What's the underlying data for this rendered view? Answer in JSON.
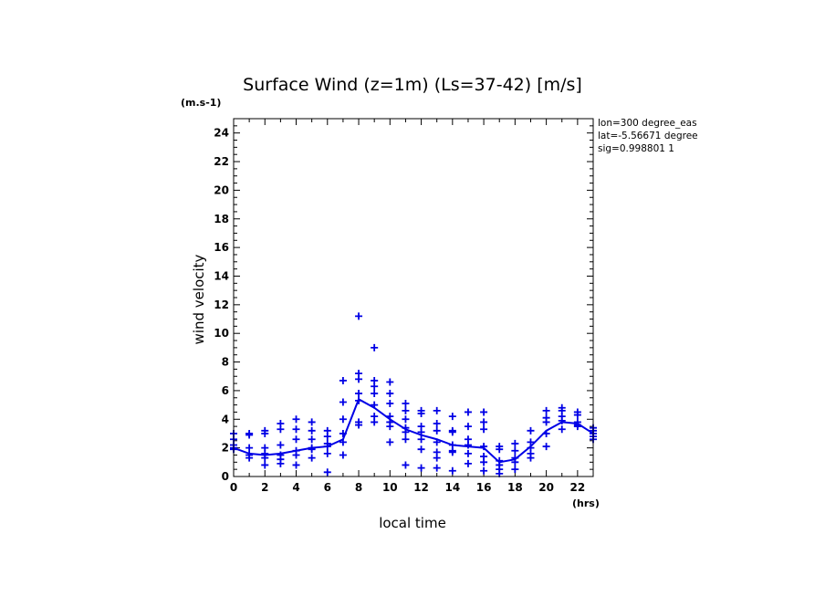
{
  "chart_data": {
    "type": "scatter",
    "title": "Surface Wind (z=1m) (Ls=37-42) [m/s]",
    "y_units": "(m.s-1)",
    "x_units": "(hrs)",
    "xlabel": "local time",
    "ylabel": "wind velocity",
    "xlim": [
      0,
      23
    ],
    "ylim": [
      0,
      25
    ],
    "x_ticks": [
      0,
      2,
      4,
      6,
      8,
      10,
      12,
      14,
      16,
      18,
      20,
      22
    ],
    "y_ticks": [
      0,
      2,
      4,
      6,
      8,
      10,
      12,
      14,
      16,
      18,
      20,
      22,
      24
    ],
    "info_lines": [
      "lon=300 degree_eas",
      "lat=-5.56671 degree",
      "sig=0.998801 1"
    ],
    "grid": false,
    "color": "#0000e6",
    "series": [
      {
        "type": "line",
        "x": [
          0,
          1,
          2,
          3,
          4,
          5,
          6,
          7,
          8,
          9,
          10,
          11,
          12,
          13,
          14,
          15,
          16,
          17,
          18,
          19,
          20,
          21,
          22,
          23
        ],
        "y": [
          2.0,
          1.6,
          1.5,
          1.6,
          1.8,
          2.0,
          2.1,
          2.6,
          5.4,
          4.8,
          4.0,
          3.3,
          2.9,
          2.6,
          2.2,
          2.1,
          2.0,
          1.0,
          1.2,
          2.1,
          3.2,
          3.8,
          3.7,
          3.0
        ]
      },
      {
        "type": "scatter",
        "marker": "+",
        "points": [
          [
            0,
            3.0
          ],
          [
            0,
            2.6
          ],
          [
            0,
            2.2
          ],
          [
            0,
            2.0
          ],
          [
            0,
            1.9
          ],
          [
            1,
            3.0
          ],
          [
            1,
            2.9
          ],
          [
            1,
            2.0
          ],
          [
            1,
            1.5
          ],
          [
            1,
            1.3
          ],
          [
            2,
            3.2
          ],
          [
            2,
            3.0
          ],
          [
            2,
            2.0
          ],
          [
            2,
            1.6
          ],
          [
            2,
            1.3
          ],
          [
            2,
            0.8
          ],
          [
            3,
            3.7
          ],
          [
            3,
            3.3
          ],
          [
            3,
            2.2
          ],
          [
            3,
            1.5
          ],
          [
            3,
            1.2
          ],
          [
            3,
            0.9
          ],
          [
            4,
            4.0
          ],
          [
            4,
            3.3
          ],
          [
            4,
            2.6
          ],
          [
            4,
            1.8
          ],
          [
            4,
            1.5
          ],
          [
            4,
            0.8
          ],
          [
            5,
            3.8
          ],
          [
            5,
            3.2
          ],
          [
            5,
            2.6
          ],
          [
            5,
            2.0
          ],
          [
            5,
            1.9
          ],
          [
            5,
            1.3
          ],
          [
            6,
            3.2
          ],
          [
            6,
            2.8
          ],
          [
            6,
            2.3
          ],
          [
            6,
            2.1
          ],
          [
            6,
            1.6
          ],
          [
            6,
            0.3
          ],
          [
            7,
            6.7
          ],
          [
            7,
            5.2
          ],
          [
            7,
            4.0
          ],
          [
            7,
            3.0
          ],
          [
            7,
            2.4
          ],
          [
            7,
            1.5
          ],
          [
            8,
            11.2
          ],
          [
            8,
            7.2
          ],
          [
            8,
            6.8
          ],
          [
            8,
            5.8
          ],
          [
            8,
            5.3
          ],
          [
            8,
            3.8
          ],
          [
            8,
            3.6
          ],
          [
            9,
            9.0
          ],
          [
            9,
            6.7
          ],
          [
            9,
            6.3
          ],
          [
            9,
            5.8
          ],
          [
            9,
            5.0
          ],
          [
            9,
            4.2
          ],
          [
            9,
            3.8
          ],
          [
            10,
            6.6
          ],
          [
            10,
            5.8
          ],
          [
            10,
            5.1
          ],
          [
            10,
            4.2
          ],
          [
            10,
            3.8
          ],
          [
            10,
            3.5
          ],
          [
            10,
            2.4
          ],
          [
            11,
            5.1
          ],
          [
            11,
            4.6
          ],
          [
            11,
            4.0
          ],
          [
            11,
            3.4
          ],
          [
            11,
            3.1
          ],
          [
            11,
            2.6
          ],
          [
            11,
            0.8
          ],
          [
            12,
            4.6
          ],
          [
            12,
            4.4
          ],
          [
            12,
            3.5
          ],
          [
            12,
            3.1
          ],
          [
            12,
            2.6
          ],
          [
            12,
            1.9
          ],
          [
            12,
            0.6
          ],
          [
            13,
            4.6
          ],
          [
            13,
            3.7
          ],
          [
            13,
            3.2
          ],
          [
            13,
            2.4
          ],
          [
            13,
            1.7
          ],
          [
            13,
            1.3
          ],
          [
            13,
            0.6
          ],
          [
            14,
            4.2
          ],
          [
            14,
            3.2
          ],
          [
            14,
            3.1
          ],
          [
            14,
            2.2
          ],
          [
            14,
            1.8
          ],
          [
            14,
            1.7
          ],
          [
            14,
            0.4
          ],
          [
            15,
            4.5
          ],
          [
            15,
            3.5
          ],
          [
            15,
            2.6
          ],
          [
            15,
            2.2
          ],
          [
            15,
            1.6
          ],
          [
            15,
            0.9
          ],
          [
            16,
            4.5
          ],
          [
            16,
            3.8
          ],
          [
            16,
            3.3
          ],
          [
            16,
            2.1
          ],
          [
            16,
            1.4
          ],
          [
            16,
            1.0
          ],
          [
            16,
            0.4
          ],
          [
            17,
            2.1
          ],
          [
            17,
            1.9
          ],
          [
            17,
            1.1
          ],
          [
            17,
            0.8
          ],
          [
            17,
            0.5
          ],
          [
            17,
            0.2
          ],
          [
            18,
            2.3
          ],
          [
            18,
            1.8
          ],
          [
            18,
            1.3
          ],
          [
            18,
            1.0
          ],
          [
            18,
            0.5
          ],
          [
            19,
            3.2
          ],
          [
            19,
            2.4
          ],
          [
            19,
            2.0
          ],
          [
            19,
            1.6
          ],
          [
            19,
            1.3
          ],
          [
            20,
            4.6
          ],
          [
            20,
            4.1
          ],
          [
            20,
            3.8
          ],
          [
            20,
            3.0
          ],
          [
            20,
            2.1
          ],
          [
            21,
            4.8
          ],
          [
            21,
            4.6
          ],
          [
            21,
            4.2
          ],
          [
            21,
            3.9
          ],
          [
            21,
            3.3
          ],
          [
            22,
            4.5
          ],
          [
            22,
            4.3
          ],
          [
            22,
            3.8
          ],
          [
            22,
            3.6
          ],
          [
            22,
            3.5
          ],
          [
            23,
            3.4
          ],
          [
            23,
            3.2
          ],
          [
            23,
            3.0
          ],
          [
            23,
            2.8
          ],
          [
            23,
            2.6
          ]
        ]
      }
    ]
  }
}
